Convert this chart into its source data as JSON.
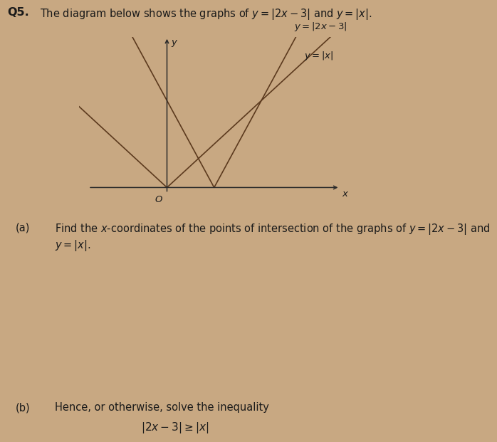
{
  "background_color": "#c8a882",
  "text_color": "#1a1a1a",
  "graph_line_color": "#5c3a1e",
  "axis_color": "#2a2a2a",
  "q_label": "Q5.",
  "intro_line1": "The diagram below shows the graphs of $y = |2x - 3|$ and $y = |x|$.",
  "label_y2x3": "$y = |2x - 3|$",
  "label_yx": "$y = |x|$",
  "part_a_label": "(a)",
  "part_a_text": "Find the $x$-coordinates of the points of intersection of the graphs of $y = |2x - 3|$ and",
  "part_a_text2": "$y = |x|$.",
  "part_b_label": "(b)",
  "part_b_text": "Hence, or otherwise, solve the inequality",
  "part_b_ineq": "$|2x - 3| \\geq |x|$",
  "origin_label": "$O$",
  "x_label": "$x$",
  "y_label": "$y$",
  "graph_xlim": [
    -2.8,
    5.5
  ],
  "graph_ylim": [
    -0.5,
    5.2
  ],
  "font_size_body": 10.5,
  "font_size_q": 11.5,
  "font_size_graph": 9.5,
  "line_width": 1.2
}
